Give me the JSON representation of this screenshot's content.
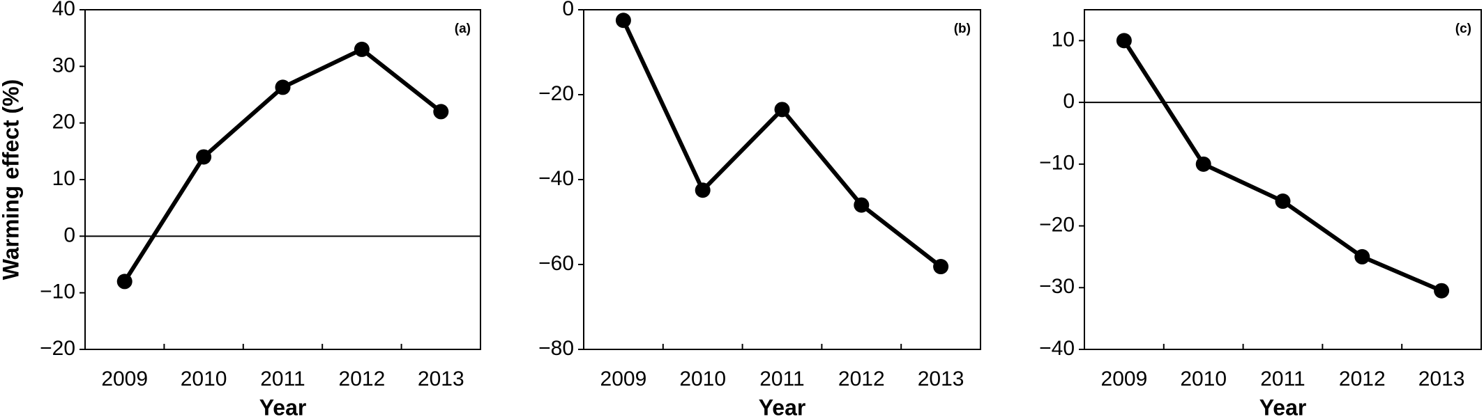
{
  "chart_data": [
    {
      "type": "line",
      "label": "(a)",
      "x_label": "Year",
      "y_label": "Warming effect (%)",
      "categories": [
        "2009",
        "2010",
        "2011",
        "2012",
        "2013"
      ],
      "values": [
        -8,
        14,
        26.3,
        33,
        22
      ],
      "color": "#000000",
      "zero_line": true,
      "ylim": [
        -20,
        40
      ],
      "yticks": [
        {
          "value": -20,
          "label": "−20"
        },
        {
          "value": -10,
          "label": "−10"
        },
        0,
        10,
        20,
        30,
        40
      ]
    },
    {
      "type": "line",
      "label": "(b)",
      "x_label": "Year",
      "categories": [
        "2009",
        "2010",
        "2011",
        "2012",
        "2013"
      ],
      "values": [
        -2.5,
        -42.5,
        -23.5,
        -46,
        -60.5
      ],
      "color": "#000000",
      "zero_line": false,
      "ylim": [
        -80,
        0
      ],
      "yticks": [
        {
          "value": -80,
          "label": "−80"
        },
        {
          "value": -60,
          "label": "−60"
        },
        {
          "value": -40,
          "label": "−40"
        },
        {
          "value": -20,
          "label": "−20"
        },
        0
      ]
    },
    {
      "type": "line",
      "label": "(c)",
      "x_label": "Year",
      "categories": [
        "2009",
        "2010",
        "2011",
        "2012",
        "2013"
      ],
      "values": [
        10,
        -10,
        -16,
        -25,
        -30.5
      ],
      "color": "#000000",
      "zero_line": true,
      "ylim": [
        -40,
        15
      ],
      "yticks": [
        {
          "value": -40,
          "label": "−40"
        },
        {
          "value": -30,
          "label": "−30"
        },
        {
          "value": -20,
          "label": "−20"
        },
        {
          "value": -10,
          "label": "−10"
        },
        0,
        10
      ]
    }
  ]
}
